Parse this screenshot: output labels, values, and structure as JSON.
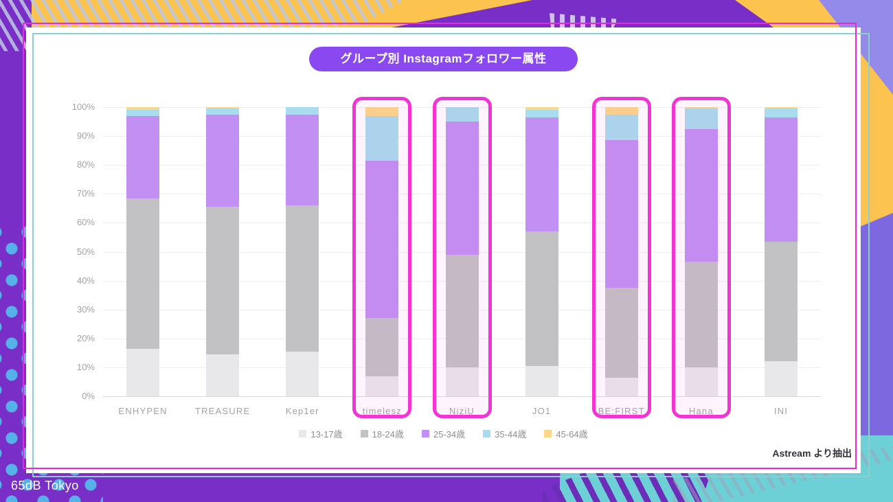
{
  "slide": {
    "title": "グループ別 Instagramフォロワー属性",
    "source_note": "Astream より抽出",
    "brand": "65dB Tokyo"
  },
  "chart_data": {
    "type": "bar",
    "stacked": true,
    "title": "グループ別 Instagramフォロワー属性",
    "xlabel": "",
    "ylabel": "",
    "ylim": [
      0,
      100
    ],
    "y_ticks_percent": [
      0,
      10,
      20,
      30,
      40,
      50,
      60,
      70,
      80,
      90,
      100
    ],
    "grid": true,
    "legend_position": "bottom",
    "categories": [
      "ENHYPEN",
      "TREASURE",
      "Kep1er",
      "timelesz",
      "NiziU",
      "JO1",
      "BE:FIRST",
      "Hana",
      "INI"
    ],
    "series": [
      {
        "name": "13-17歳",
        "color": "#e8e7ea",
        "values": [
          16.5,
          14.5,
          15.5,
          7,
          10,
          10.5,
          6.5,
          10,
          12
        ]
      },
      {
        "name": "18-24歳",
        "color": "#c2c1c4",
        "values": [
          52,
          51,
          50.5,
          20,
          39,
          46.5,
          31,
          36.5,
          41.5
        ]
      },
      {
        "name": "25-34歳",
        "color": "#c290f2",
        "values": [
          28.5,
          32,
          31.5,
          54.5,
          46,
          39.5,
          51,
          46,
          43
        ]
      },
      {
        "name": "35-44歳",
        "color": "#a9dcee",
        "values": [
          2,
          2,
          2.5,
          15.5,
          5,
          2.5,
          9,
          7,
          3
        ]
      },
      {
        "name": "45-64歳",
        "color": "#fcd78a",
        "values": [
          1,
          0.5,
          0,
          3,
          0,
          1,
          2.5,
          0.5,
          0.5
        ]
      }
    ],
    "highlighted_categories": [
      "timelesz",
      "NiziU",
      "BE:FIRST",
      "Hana"
    ]
  },
  "colors": {
    "background_purple": "#7a2ec8",
    "accent_yellow": "#fcc44f",
    "accent_teal": "#6ed0d7",
    "accent_slate_purple": "#7d68e0",
    "dot_blue": "#57b1e9",
    "highlight_box_magenta": "#f233d6",
    "card_border_magenta": "#ef25d8",
    "card_border_teal": "#8fcdd1",
    "title_pill_purple": "#8a48f0"
  }
}
